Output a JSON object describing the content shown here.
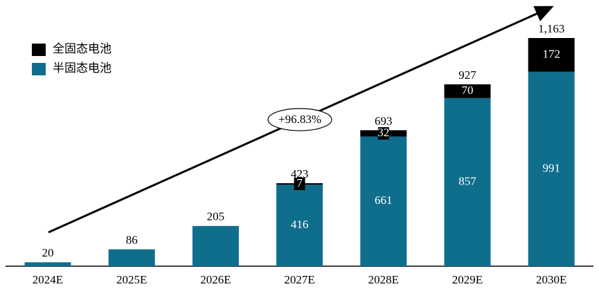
{
  "chart_data": {
    "type": "stacked_bar",
    "categories": [
      "2024E",
      "2025E",
      "2026E",
      "2027E",
      "2028E",
      "2029E",
      "2030E"
    ],
    "series": [
      {
        "name": "半固态电池",
        "color": "#0f6e8c",
        "values": [
          20,
          86,
          205,
          416,
          661,
          857,
          991
        ]
      },
      {
        "name": "全固态电池",
        "color": "#000000",
        "values": [
          null,
          null,
          null,
          7,
          32,
          70,
          172
        ]
      }
    ],
    "totals": {
      "values": [
        20,
        86,
        205,
        423,
        693,
        927,
        1163
      ],
      "value_labels": [
        "20",
        "86",
        "205",
        "423",
        "693",
        "927",
        "1,163"
      ]
    },
    "annotation": "+96.83%",
    "ylim": [
      0,
      1200
    ],
    "legend": "top-left"
  }
}
